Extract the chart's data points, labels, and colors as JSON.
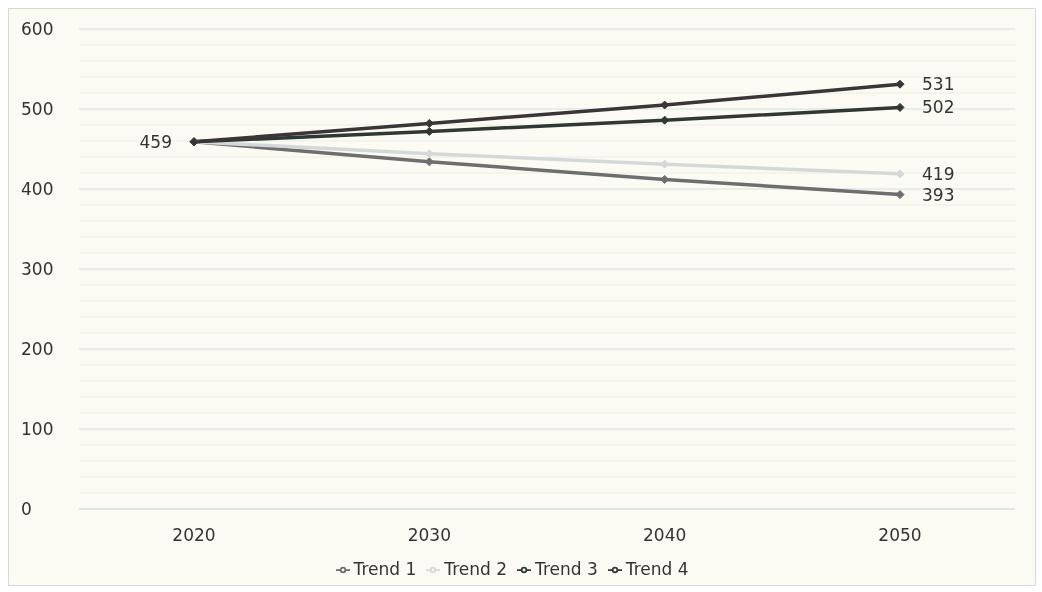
{
  "chart_data": {
    "type": "line",
    "categories": [
      "2020",
      "2030",
      "2040",
      "2050"
    ],
    "series": [
      {
        "name": "Trend 1",
        "color": "#6e6e6e",
        "values": [
          459,
          434,
          412,
          393
        ],
        "value_labels": [
          null,
          null,
          null,
          "393"
        ]
      },
      {
        "name": "Trend 2",
        "color": "#d3d9d9",
        "values": [
          459,
          444,
          431,
          419
        ],
        "value_labels": [
          null,
          null,
          null,
          "419"
        ]
      },
      {
        "name": "Trend 3",
        "color": "#2e3a31",
        "values": [
          459,
          472,
          486,
          502
        ],
        "value_labels": [
          null,
          null,
          null,
          "502"
        ]
      },
      {
        "name": "Trend 4",
        "color": "#3b3538",
        "values": [
          459,
          482,
          505,
          531
        ],
        "value_labels": [
          "459",
          null,
          null,
          "531"
        ]
      }
    ],
    "ylim": [
      0,
      600
    ],
    "yticks": [
      0,
      {
        "value": 20,
        "label": null
      },
      {
        "value": 40,
        "label": null
      },
      {
        "value": 60,
        "label": null
      },
      {
        "value": 80,
        "label": null
      },
      100,
      {
        "value": 120,
        "label": null
      },
      {
        "value": 140,
        "label": null
      },
      {
        "value": 160,
        "label": null
      },
      {
        "value": 180,
        "label": null
      },
      200,
      {
        "value": 220,
        "label": null
      },
      {
        "value": 240,
        "label": null
      },
      {
        "value": 260,
        "label": null
      },
      {
        "value": 280,
        "label": null
      },
      300,
      {
        "value": 320,
        "label": null
      },
      {
        "value": 340,
        "label": null
      },
      {
        "value": 360,
        "label": null
      },
      {
        "value": 380,
        "label": null
      },
      400,
      {
        "value": 420,
        "label": null
      },
      {
        "value": 440,
        "label": null
      },
      {
        "value": 460,
        "label": null
      },
      {
        "value": 480,
        "label": null
      },
      500,
      {
        "value": 520,
        "label": null
      },
      {
        "value": 540,
        "label": null
      },
      {
        "value": 560,
        "label": null
      },
      {
        "value": 580,
        "label": null
      },
      600
    ],
    "grid": "y",
    "legend": "bottom",
    "marker": "diamond",
    "line_style": "solid"
  }
}
